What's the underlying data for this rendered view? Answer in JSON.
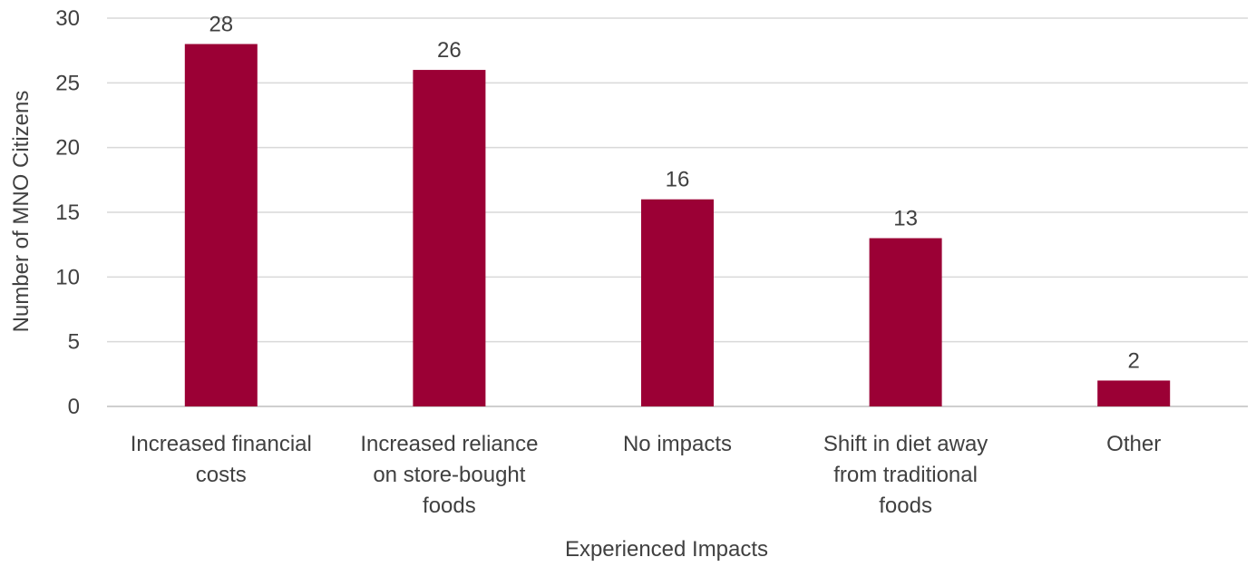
{
  "chart_data": {
    "type": "bar",
    "categories": [
      [
        "Increased financial",
        "costs"
      ],
      [
        "Increased reliance",
        "on store-bought",
        "foods"
      ],
      [
        "No impacts"
      ],
      [
        "Shift in diet away",
        "from traditional",
        "foods"
      ],
      [
        "Other"
      ]
    ],
    "values": [
      28,
      26,
      16,
      13,
      2
    ],
    "data_labels": [
      "28",
      "26",
      "16",
      "13",
      "2"
    ],
    "xlabel": "Experienced Impacts",
    "ylabel": "Number of MNO Citizens",
    "ylim": [
      0,
      30
    ],
    "yticks": [
      0,
      5,
      10,
      15,
      20,
      25,
      30
    ],
    "grid": true,
    "legend": "none",
    "colors": {
      "bar": "#9b0035",
      "grid": "#d9d9d9",
      "text": "#404040"
    }
  }
}
